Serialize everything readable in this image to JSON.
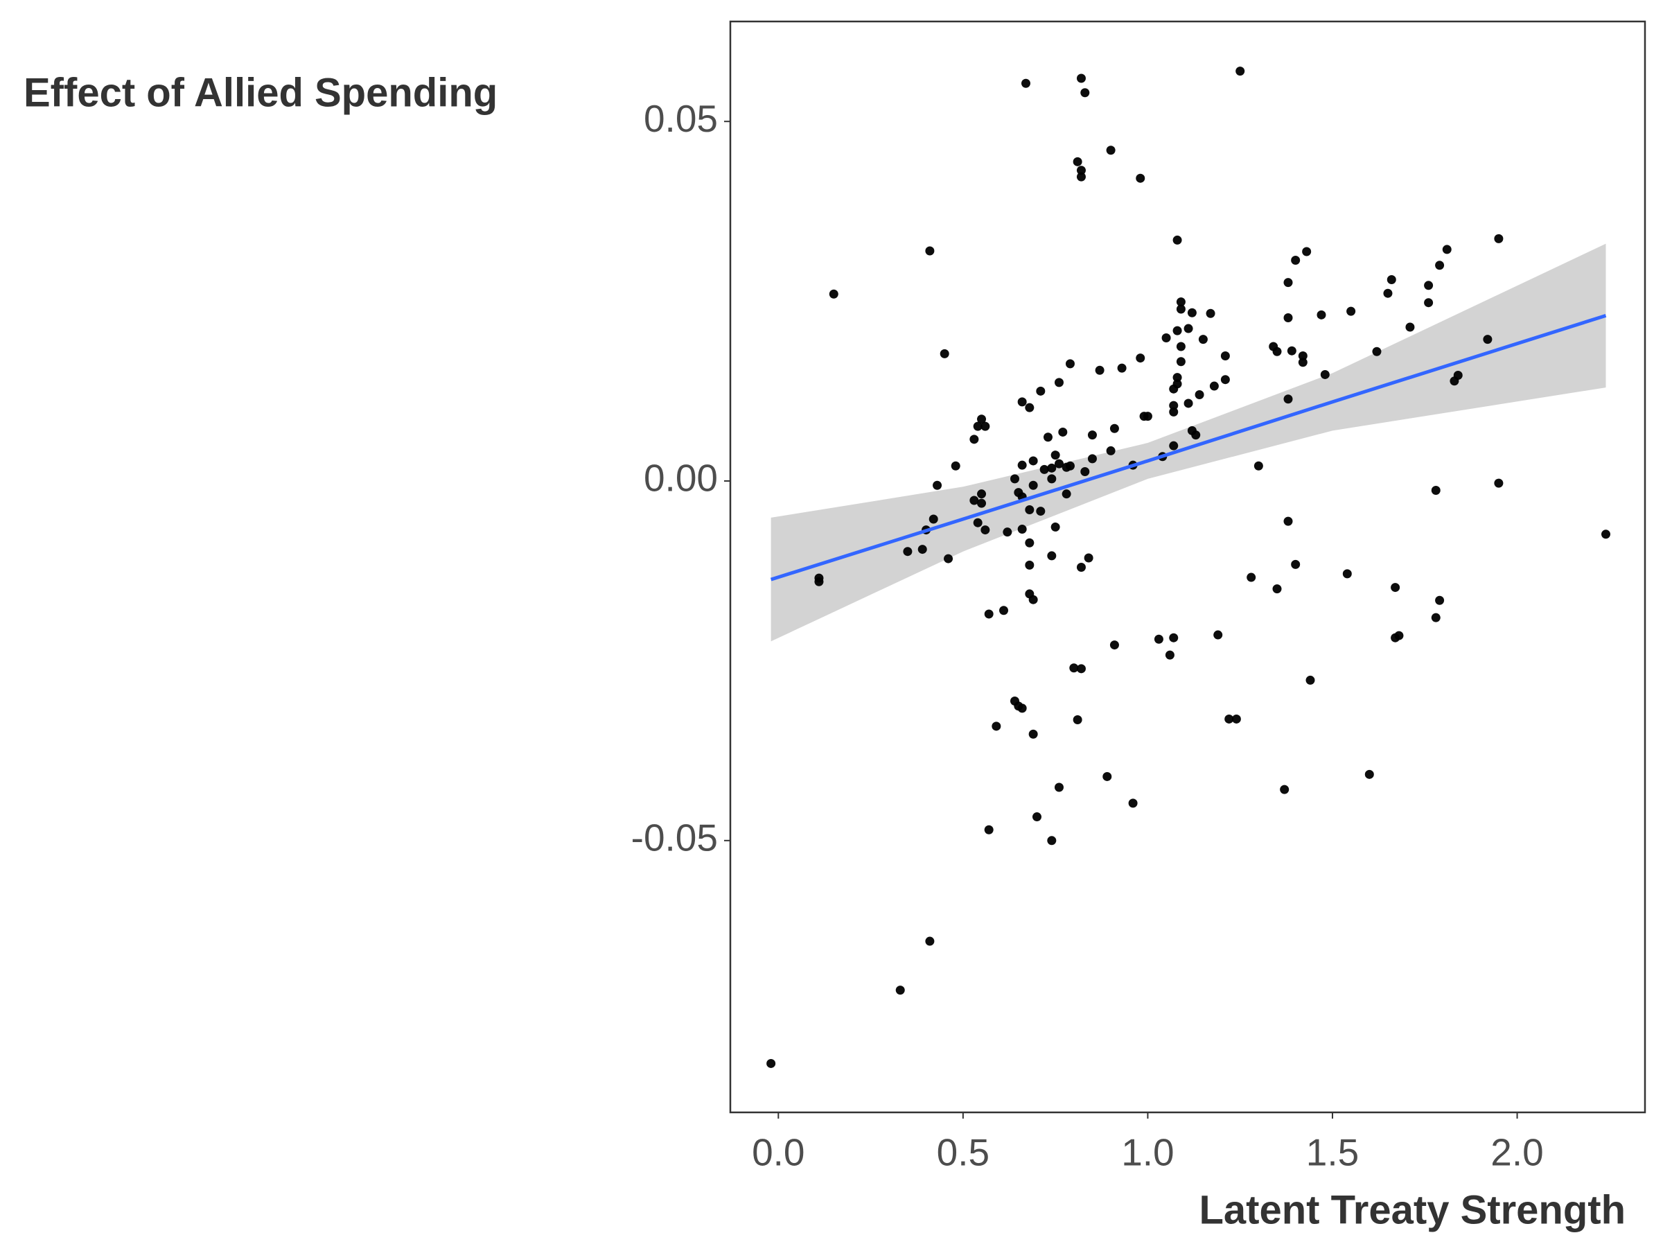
{
  "chart_data": {
    "type": "scatter",
    "ylabel": "Effect of Allied Spending",
    "xlabel": "Latent Treaty Strength",
    "xlim": [
      -0.13,
      2.346
    ],
    "ylim": [
      -0.0878,
      0.0639
    ],
    "xticks": [
      {
        "value": 0,
        "label": "0.0"
      },
      0.5,
      {
        "value": 1,
        "label": "1.0"
      },
      1.5,
      {
        "value": 2,
        "label": "2.0"
      }
    ],
    "yticks": [
      -0.05,
      {
        "value": 0,
        "label": "0.00"
      },
      0.05
    ],
    "grid": false,
    "color": "#000000",
    "x": [
      -0.02,
      0.33,
      0.41,
      0.15,
      0.41,
      0.45,
      0.11,
      0.11,
      0.67,
      0.82,
      0.83,
      1.25,
      0.9,
      0.81,
      0.82,
      0.82,
      0.98,
      1.08,
      1.95,
      1.81,
      1.79,
      1.43,
      1.4,
      1.38,
      1.66,
      1.65,
      1.76,
      1.76,
      1.47,
      1.55,
      1.38,
      1.71,
      1.09,
      1.09,
      1.12,
      1.17,
      1.08,
      1.05,
      1.11,
      1.15,
      1.34,
      1.35,
      1.39,
      1.42,
      1.42,
      1.62,
      1.92,
      1.09,
      1.09,
      1.21,
      0.98,
      0.93,
      0.87,
      0.79,
      1.48,
      1.84,
      1.83,
      1.08,
      1.08,
      1.07,
      1.21,
      1.18,
      1.14,
      1.11,
      1.38,
      0.76,
      0.71,
      0.66,
      0.68,
      1.07,
      1.07,
      0.99,
      1.0,
      0.55,
      0.54,
      0.56,
      0.53,
      0.77,
      0.73,
      0.85,
      0.91,
      1.12,
      1.13,
      1.07,
      0.9,
      1.04,
      0.96,
      0.48,
      0.69,
      0.75,
      0.66,
      0.76,
      0.78,
      0.72,
      0.74,
      0.79,
      0.85,
      1.3,
      0.64,
      0.74,
      0.83,
      0.69,
      0.65,
      0.66,
      0.78,
      0.43,
      1.78,
      1.95,
      0.55,
      0.53,
      0.55,
      0.68,
      0.71,
      0.54,
      0.56,
      0.62,
      0.66,
      0.75,
      0.42,
      0.4,
      1.38,
      2.24,
      0.68,
      0.68,
      0.74,
      0.84,
      0.82,
      0.39,
      0.35,
      0.46,
      1.4,
      1.28,
      1.35,
      1.54,
      1.67,
      1.79,
      1.78,
      0.68,
      0.69,
      0.61,
      0.57,
      1.03,
      1.07,
      1.06,
      0.91,
      1.19,
      1.67,
      1.68,
      0.8,
      0.82,
      1.44,
      0.64,
      0.65,
      0.66,
      1.22,
      1.24,
      0.81,
      0.59,
      0.69,
      0.89,
      1.6,
      0.96,
      0.76,
      1.37,
      0.7,
      0.57,
      0.74
    ],
    "values": [
      -0.081,
      -0.0708,
      -0.064,
      0.026,
      0.032,
      0.0177,
      -0.0135,
      -0.014,
      0.0553,
      0.056,
      0.054,
      0.057,
      0.046,
      0.0444,
      0.0432,
      0.0423,
      0.0421,
      0.0335,
      0.0337,
      0.0322,
      0.03,
      0.0319,
      0.0307,
      0.0276,
      0.028,
      0.0261,
      0.0272,
      0.0248,
      0.0231,
      0.0236,
      0.0227,
      0.0214,
      0.0249,
      0.0239,
      0.0234,
      0.0233,
      0.0209,
      0.0199,
      0.0212,
      0.0197,
      0.0187,
      0.018,
      0.0181,
      0.0174,
      0.0165,
      0.018,
      0.0197,
      0.0187,
      0.0166,
      0.0174,
      0.0171,
      0.0157,
      0.0154,
      0.0163,
      0.0148,
      0.0147,
      0.0139,
      0.0144,
      0.0135,
      0.0128,
      0.0141,
      0.0132,
      0.012,
      0.0108,
      0.0114,
      0.0137,
      0.0125,
      0.011,
      0.0102,
      0.0105,
      0.0096,
      0.009,
      0.009,
      0.0086,
      0.0076,
      0.0076,
      0.0058,
      0.0068,
      0.0061,
      0.0064,
      0.0073,
      0.007,
      0.0064,
      0.0049,
      0.0042,
      0.0034,
      0.0022,
      0.0021,
      0.0028,
      0.0036,
      0.0022,
      0.0024,
      0.0019,
      0.0016,
      0.0018,
      0.0021,
      0.0031,
      0.0021,
      0.0003,
      0.0003,
      0.0013,
      -0.0006,
      -0.0016,
      -0.0022,
      -0.0018,
      -0.0006,
      -0.0013,
      -0.0003,
      -0.0018,
      -0.0027,
      -0.0031,
      -0.004,
      -0.0042,
      -0.0058,
      -0.0068,
      -0.0071,
      -0.0067,
      -0.0064,
      -0.0053,
      -0.0068,
      -0.0056,
      -0.0074,
      -0.0086,
      -0.0117,
      -0.0104,
      -0.0107,
      -0.012,
      -0.0095,
      -0.0098,
      -0.0108,
      -0.0116,
      -0.0134,
      -0.015,
      -0.0129,
      -0.0148,
      -0.0166,
      -0.019,
      -0.0157,
      -0.0165,
      -0.018,
      -0.0185,
      -0.022,
      -0.0218,
      -0.0242,
      -0.0228,
      -0.0214,
      -0.0218,
      -0.0215,
      -0.026,
      -0.0261,
      -0.0277,
      -0.0306,
      -0.0313,
      -0.0316,
      -0.0331,
      -0.0331,
      -0.0332,
      -0.0341,
      -0.0352,
      -0.0411,
      -0.0408,
      -0.0448,
      -0.0426,
      -0.0429,
      -0.0467,
      -0.0485,
      -0.05
    ],
    "fit": {
      "color": "#3366ff",
      "band_color": "#d3d3d3",
      "x": [
        -0.02,
        0.5,
        1.0,
        1.5,
        2.24
      ],
      "values": [
        -0.0137,
        -0.0053,
        0.0028,
        0.011,
        0.023
      ],
      "lower": [
        -0.0223,
        -0.0098,
        0.0003,
        0.007,
        0.013
      ],
      "upper": [
        -0.0051,
        -0.0008,
        0.0053,
        0.015,
        0.033
      ]
    }
  }
}
